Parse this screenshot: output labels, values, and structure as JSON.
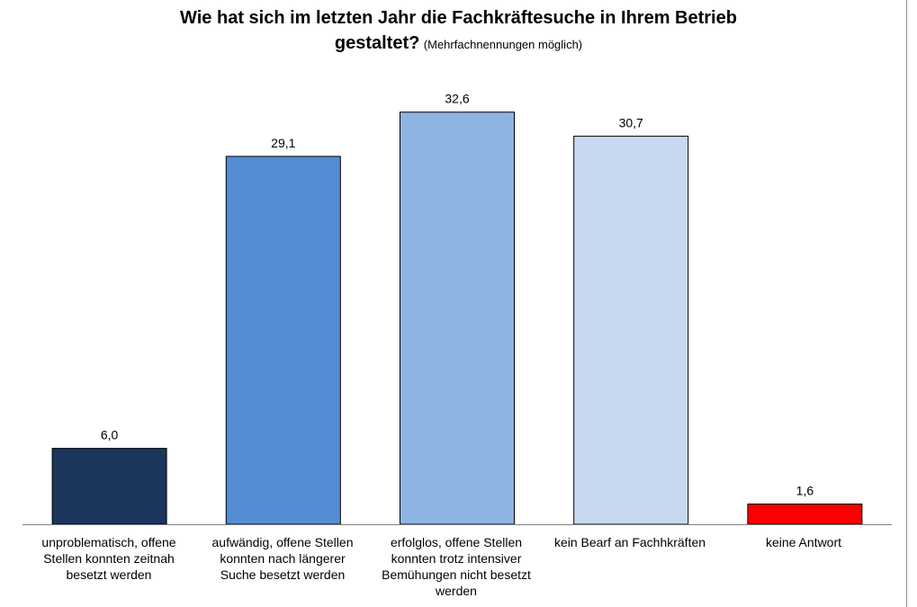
{
  "chart_data": {
    "type": "bar",
    "title": "Wie hat sich im letzten Jahr die Fachkräftesuche in Ihrem Betrieb",
    "title_line2": "gestaltet?",
    "subtitle": "(Mehrfachnennungen möglich)",
    "categories": [
      "unproblematisch, offene Stellen konnten zeitnah besetzt werden",
      "aufwändig, offene Stellen konnten  nach längerer Suche besetzt werden",
      "erfolglos, offene Stellen konnten trotz intensiver Bemühungen nicht besetzt werden",
      "kein Bearf an Fachhkräften",
      "keine Antwort"
    ],
    "values": [
      6.0,
      29.1,
      32.6,
      30.7,
      1.6
    ],
    "value_labels": [
      "6,0",
      "29,1",
      "32,6",
      "30,7",
      "1,6"
    ],
    "colors": [
      "#1b355c",
      "#548dd4",
      "#8eb4e3",
      "#c6d9f1",
      "#ff0000"
    ],
    "ylim": [
      0,
      37.2
    ],
    "grid": false,
    "legend": "none"
  }
}
